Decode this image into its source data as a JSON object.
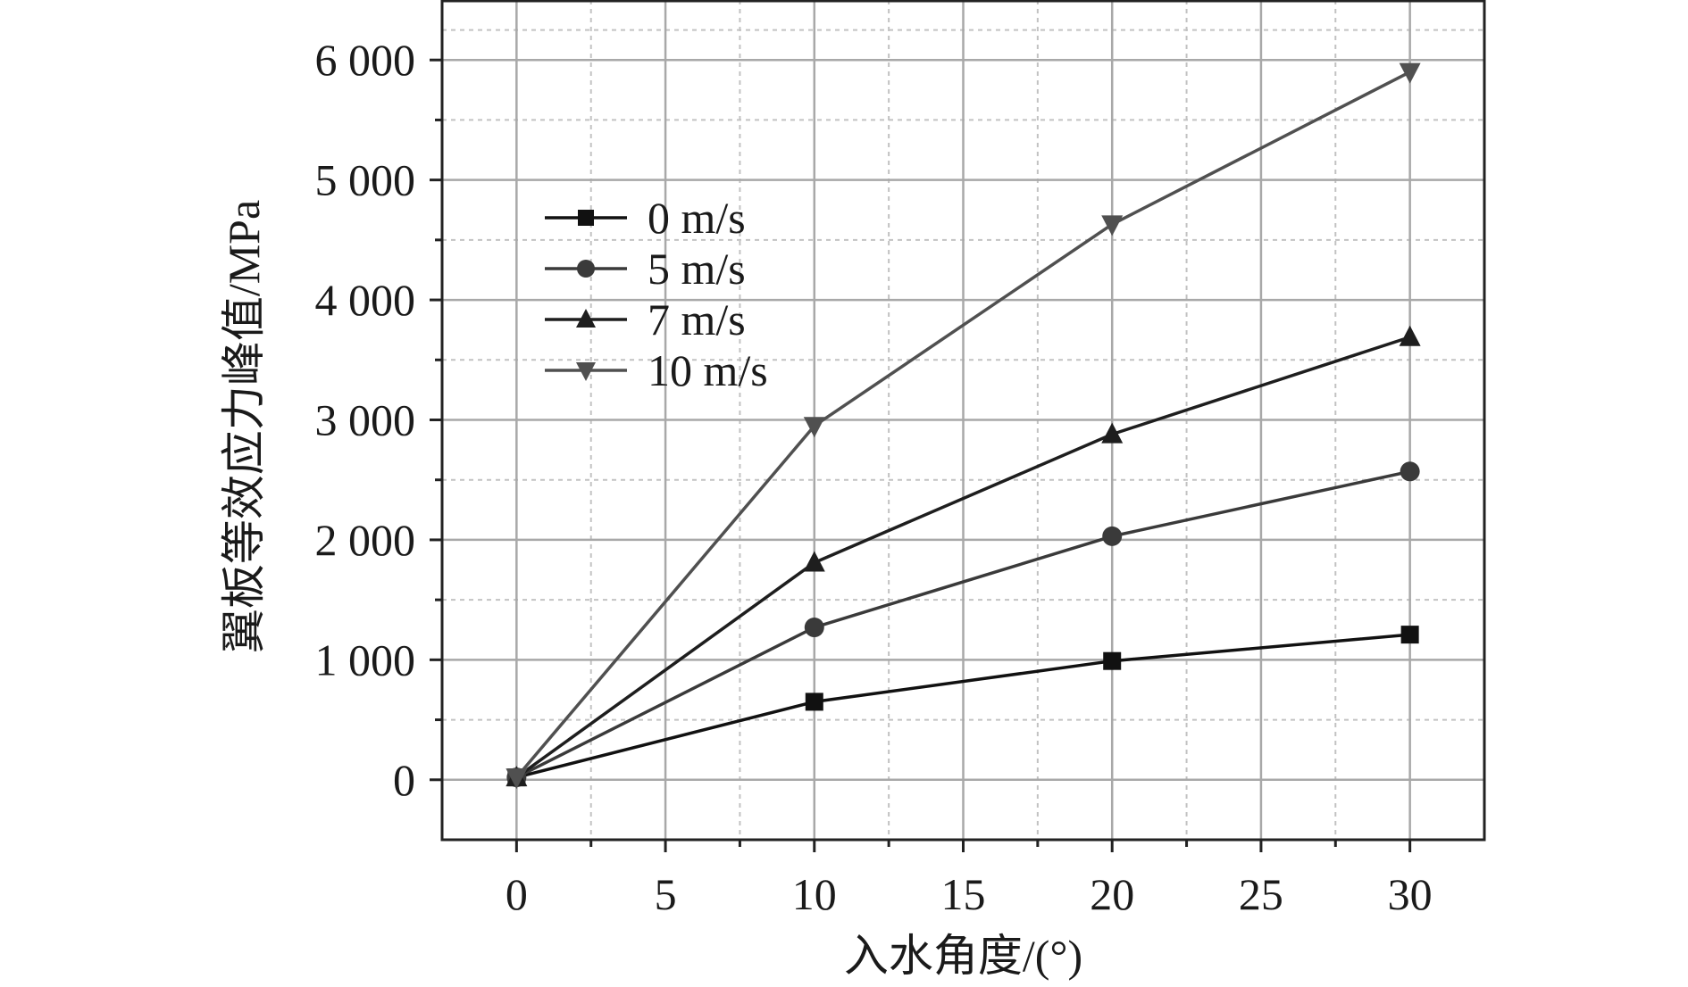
{
  "chart_data": {
    "type": "line",
    "title": "",
    "xlabel": "入水角度/(°)",
    "ylabel": "翼板等效应力峰值/MPa",
    "xlim": [
      -2.5,
      32.5
    ],
    "ylim": [
      -500,
      6500
    ],
    "grid": true,
    "legend_position": "top-left",
    "x_ticks": [
      {
        "value": 0,
        "label": "0"
      },
      {
        "value": 5,
        "label": "5"
      },
      {
        "value": 10,
        "label": "10"
      },
      {
        "value": 15,
        "label": "15"
      },
      {
        "value": 20,
        "label": "20"
      },
      {
        "value": 25,
        "label": "25"
      },
      {
        "value": 30,
        "label": "30"
      }
    ],
    "y_ticks": [
      {
        "value": 0,
        "label": "0"
      },
      {
        "value": 1000,
        "label": "1 000"
      },
      {
        "value": 2000,
        "label": "2 000"
      },
      {
        "value": 3000,
        "label": "3 000"
      },
      {
        "value": 4000,
        "label": "4 000"
      },
      {
        "value": 5000,
        "label": "5 000"
      },
      {
        "value": 6000,
        "label": "6 000"
      }
    ],
    "x": [
      0,
      10,
      20,
      30
    ],
    "series": [
      {
        "name": "0 m/s",
        "marker": "square",
        "color": "#111111",
        "values": [
          20,
          650,
          990,
          1210
        ]
      },
      {
        "name": "5 m/s",
        "marker": "circle",
        "color": "#3a3a3a",
        "values": [
          20,
          1270,
          2030,
          2570
        ]
      },
      {
        "name": "7 m/s",
        "marker": "triangle-up",
        "color": "#1e1e1e",
        "values": [
          20,
          1810,
          2880,
          3690
        ]
      },
      {
        "name": "10 m/s",
        "marker": "triangle-down",
        "color": "#505050",
        "values": [
          20,
          2950,
          4630,
          5900
        ]
      }
    ]
  }
}
